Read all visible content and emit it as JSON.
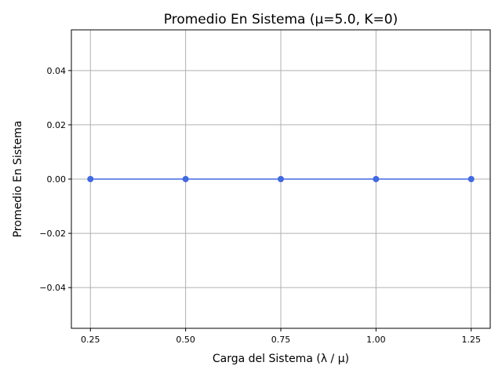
{
  "chart_data": {
    "type": "line",
    "title": "Promedio En Sistema (μ=5.0, K=0)",
    "xlabel": "Carga del Sistema (λ / μ)",
    "ylabel": "Promedio En Sistema",
    "x": [
      0.25,
      0.5,
      0.75,
      1.0,
      1.25
    ],
    "series": [
      {
        "values": [
          0,
          0,
          0,
          0,
          0
        ],
        "color": "#4169e1",
        "marker": "circle"
      }
    ],
    "xlim": [
      0.2,
      1.3
    ],
    "ylim": [
      -0.055,
      0.055
    ],
    "xticks": [
      0.25,
      0.5,
      0.75,
      1.0,
      1.25
    ],
    "xtick_labels": [
      "0.25",
      "0.50",
      "0.75",
      "1.00",
      "1.25"
    ],
    "yticks": [
      -0.04,
      -0.02,
      0.0,
      0.02,
      0.04
    ],
    "ytick_labels": [
      "−0.04",
      "−0.02",
      "0.00",
      "0.02",
      "0.04"
    ],
    "grid": true
  }
}
